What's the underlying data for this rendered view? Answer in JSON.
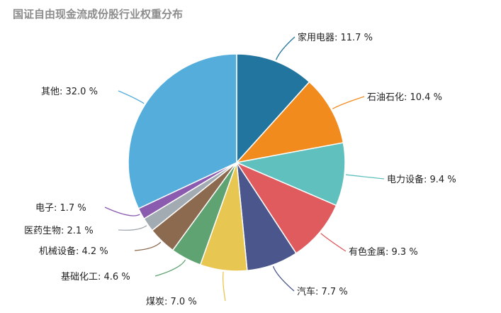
{
  "chart_data": {
    "type": "pie",
    "title": "国证自由现金流成份股行业权重分布",
    "unit": "%",
    "slices": [
      {
        "name": "家用电器",
        "value": 11.7,
        "color": "#22759e"
      },
      {
        "name": "石油石化",
        "value": 10.4,
        "color": "#f28b1e"
      },
      {
        "name": "电力设备",
        "value": 9.4,
        "color": "#5fc0be"
      },
      {
        "name": "有色金属",
        "value": 9.3,
        "color": "#e05b5e"
      },
      {
        "name": "汽车",
        "value": 7.7,
        "color": "#4b578c"
      },
      {
        "name": "煤炭",
        "value": 7.0,
        "color": "#e7c652"
      },
      {
        "name": "基础化工",
        "value": 4.6,
        "color": "#5ea371"
      },
      {
        "name": "机械设备",
        "value": 4.2,
        "color": "#8b6a4f"
      },
      {
        "name": "医药生物",
        "value": 2.1,
        "color": "#a3abb2"
      },
      {
        "name": "电子",
        "value": 1.7,
        "color": "#8b5bb0"
      },
      {
        "name": "其他",
        "value": 32.0,
        "color": "#55addb"
      }
    ]
  }
}
